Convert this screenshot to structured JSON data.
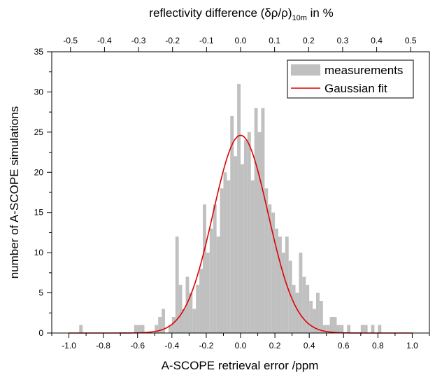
{
  "chart_data": {
    "type": "bar",
    "x_label": "A-SCOPE retrieval error /ppm",
    "y_label": "number of A-SCOPE simulations",
    "top_axis": {
      "label_main": "reflectivity difference (δρ/ρ)",
      "label_sub": "10m",
      "label_tail": " in %",
      "ticks": [
        -0.5,
        -0.4,
        -0.3,
        -0.2,
        -0.1,
        0.0,
        0.1,
        0.2,
        0.3,
        0.4,
        0.5
      ],
      "tick_labels": [
        "-0.5",
        "-0.4",
        "-0.3",
        "-0.2",
        "-0.1",
        "0.0",
        "0.1",
        "0.2",
        "0.3",
        "0.4",
        "0.5"
      ],
      "xlim": [
        -0.555,
        0.555
      ]
    },
    "xlim": [
      -1.1,
      1.1
    ],
    "ylim": [
      0,
      35
    ],
    "x_ticks": [
      -1.0,
      -0.8,
      -0.6,
      -0.4,
      -0.2,
      0.0,
      0.2,
      0.4,
      0.6,
      0.8,
      1.0
    ],
    "x_tick_labels": [
      "-1.0",
      "-0.8",
      "-0.6",
      "-0.4",
      "-0.2",
      "0.0",
      "0.2",
      "0.4",
      "0.6",
      "0.8",
      "1.0"
    ],
    "y_ticks": [
      0,
      5,
      10,
      15,
      20,
      25,
      30,
      35
    ],
    "y_tick_labels": [
      "0",
      "5",
      "10",
      "15",
      "20",
      "25",
      "30",
      "35"
    ],
    "legend": {
      "position": "top-right",
      "entries": [
        {
          "label": "measurements",
          "style": "patch",
          "color": "#c0c0c0"
        },
        {
          "label": "Gaussian fit",
          "style": "line",
          "color": "#e00000"
        }
      ]
    },
    "series": [
      {
        "name": "measurements",
        "kind": "histogram",
        "color": "#c0c0c0",
        "bin_width": 0.02,
        "bins": [
          {
            "x": -0.93,
            "y": 1
          },
          {
            "x": -0.61,
            "y": 1
          },
          {
            "x": -0.59,
            "y": 1
          },
          {
            "x": -0.57,
            "y": 1
          },
          {
            "x": -0.49,
            "y": 1
          },
          {
            "x": -0.47,
            "y": 2
          },
          {
            "x": -0.45,
            "y": 3
          },
          {
            "x": -0.43,
            "y": 0
          },
          {
            "x": -0.41,
            "y": 1
          },
          {
            "x": -0.39,
            "y": 2
          },
          {
            "x": -0.37,
            "y": 12
          },
          {
            "x": -0.35,
            "y": 6
          },
          {
            "x": -0.33,
            "y": 3
          },
          {
            "x": -0.31,
            "y": 7
          },
          {
            "x": -0.29,
            "y": 5
          },
          {
            "x": -0.27,
            "y": 3
          },
          {
            "x": -0.25,
            "y": 6
          },
          {
            "x": -0.23,
            "y": 8
          },
          {
            "x": -0.21,
            "y": 16
          },
          {
            "x": -0.19,
            "y": 10
          },
          {
            "x": -0.17,
            "y": 13
          },
          {
            "x": -0.15,
            "y": 16
          },
          {
            "x": -0.13,
            "y": 12
          },
          {
            "x": -0.11,
            "y": 18
          },
          {
            "x": -0.09,
            "y": 20
          },
          {
            "x": -0.07,
            "y": 19
          },
          {
            "x": -0.05,
            "y": 27
          },
          {
            "x": -0.03,
            "y": 22
          },
          {
            "x": -0.01,
            "y": 31
          },
          {
            "x": 0.01,
            "y": 21
          },
          {
            "x": 0.03,
            "y": 24
          },
          {
            "x": 0.05,
            "y": 25
          },
          {
            "x": 0.07,
            "y": 19
          },
          {
            "x": 0.09,
            "y": 28
          },
          {
            "x": 0.11,
            "y": 25
          },
          {
            "x": 0.13,
            "y": 28
          },
          {
            "x": 0.15,
            "y": 18
          },
          {
            "x": 0.17,
            "y": 16
          },
          {
            "x": 0.19,
            "y": 15
          },
          {
            "x": 0.21,
            "y": 13
          },
          {
            "x": 0.23,
            "y": 12
          },
          {
            "x": 0.25,
            "y": 10
          },
          {
            "x": 0.27,
            "y": 12
          },
          {
            "x": 0.29,
            "y": 9
          },
          {
            "x": 0.31,
            "y": 6
          },
          {
            "x": 0.33,
            "y": 5
          },
          {
            "x": 0.35,
            "y": 10
          },
          {
            "x": 0.37,
            "y": 7
          },
          {
            "x": 0.39,
            "y": 6
          },
          {
            "x": 0.41,
            "y": 4
          },
          {
            "x": 0.43,
            "y": 3
          },
          {
            "x": 0.45,
            "y": 5
          },
          {
            "x": 0.47,
            "y": 4
          },
          {
            "x": 0.49,
            "y": 1
          },
          {
            "x": 0.51,
            "y": 1
          },
          {
            "x": 0.53,
            "y": 2
          },
          {
            "x": 0.55,
            "y": 2
          },
          {
            "x": 0.57,
            "y": 1
          },
          {
            "x": 0.59,
            "y": 1
          },
          {
            "x": 0.63,
            "y": 1
          },
          {
            "x": 0.71,
            "y": 1
          },
          {
            "x": 0.73,
            "y": 1
          },
          {
            "x": 0.77,
            "y": 1
          },
          {
            "x": 0.81,
            "y": 1
          }
        ]
      },
      {
        "name": "Gaussian fit",
        "kind": "curve",
        "color": "#e00000",
        "amplitude": 24.6,
        "center": 0.0,
        "sigma": 0.16,
        "x_range": [
          -1.0,
          1.0
        ]
      }
    ]
  }
}
